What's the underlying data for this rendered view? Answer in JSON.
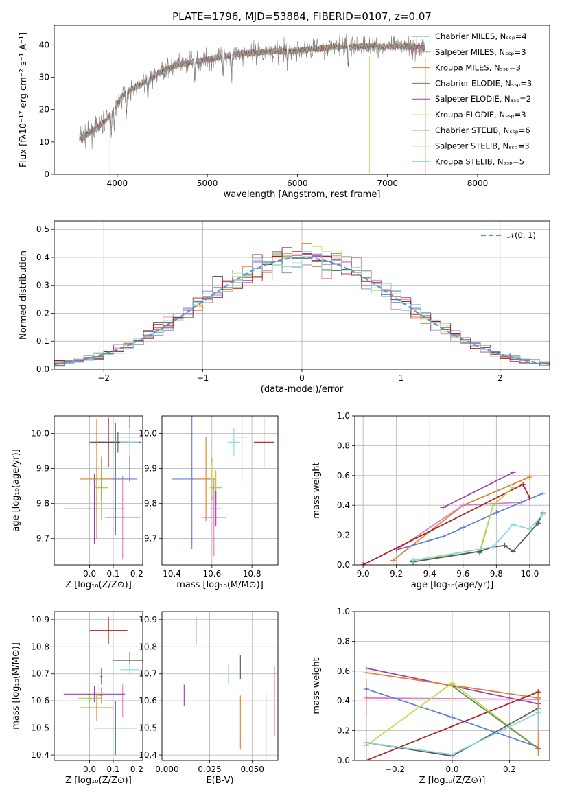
{
  "title": "PLATE=1796, MJD=53884, FIBERID=0107, z=0.07",
  "colors": {
    "chabrier_miles": "#6b8ecf",
    "salpeter_miles": "#f08080",
    "kroupa_miles": "#d9822b",
    "chabrier_elodie": "#5e8a5e",
    "salpeter_elodie": "#9b3fb5",
    "kroupa_elodie": "#c8e06b",
    "chabrier_stelib": "#555555",
    "salpeter_stelib": "#b01c1c",
    "kroupa_stelib": "#80d8e0",
    "normal": "#5b8fd8",
    "grid": "#b0b0b0",
    "pink": "#e377c2",
    "blue": "#5b7fcf",
    "green": "#9acd32",
    "yellowgreen": "#bcdc4c",
    "orange": "#e0802b",
    "purple": "#9b3fb5",
    "cyan": "#80d8e0",
    "darkgrey": "#555555",
    "darkred": "#b01c1c",
    "olive": "#9aa03a"
  },
  "chart_data": [
    {
      "id": "spectrum",
      "type": "line",
      "xlabel": "wavelength [Angstrom, rest frame]",
      "ylabel": "Flux [fλ10⁻¹⁷ erg cm⁻² s⁻¹ A⁻¹]",
      "xlim": [
        3300,
        8800
      ],
      "ylim": [
        0,
        46
      ],
      "xticks": [
        4000,
        5000,
        6000,
        7000,
        8000
      ],
      "yticks": [
        0,
        10,
        20,
        30,
        40
      ],
      "grid": false,
      "legend_position": "top-right",
      "legend": [
        "Chabrier MILES, Nₛₛₚ=4",
        "Salpeter MILES, Nₛₛₚ=3",
        "Kroupa MILES, Nₛₛₚ=3",
        "Chabrier ELODIE, Nₛₛₚ=3",
        "Salpeter ELODIE, Nₛₛₚ=2",
        "Kroupa ELODIE, Nₛₛₚ=3",
        "Chabrier STELIB, Nₛₛₚ=6",
        "Salpeter STELIB, Nₛₛₚ=3",
        "Kroupa STELIB, Nₛₛₚ=5"
      ],
      "continuum": {
        "x": [
          3580,
          3650,
          3750,
          3850,
          3950,
          4050,
          4200,
          4350,
          4500,
          4700,
          4900,
          5100,
          5300,
          5500,
          5700,
          5900,
          6100,
          6300,
          6500,
          6700,
          6900,
          7100,
          7300,
          7400
        ],
        "y": [
          11,
          12,
          14,
          16,
          19,
          24,
          27,
          29,
          32,
          34,
          35,
          36,
          37,
          37.5,
          38,
          38,
          38.5,
          39,
          39.5,
          39.5,
          39.5,
          39.5,
          39.5,
          39
        ]
      },
      "data_wavelength_range": [
        3580,
        7420
      ]
    },
    {
      "id": "residuals",
      "type": "histogram",
      "xlabel": "(data-model)/error",
      "ylabel": "Normed distribution",
      "xlim": [
        -2.5,
        2.5
      ],
      "ylim": [
        0,
        0.53
      ],
      "xticks": [
        -2,
        -1,
        0,
        1,
        2
      ],
      "yticks": [
        0.0,
        0.1,
        0.2,
        0.3,
        0.4,
        0.5
      ],
      "grid": true,
      "legend_position": "top-right",
      "legend": [
        "𝒩(0, 1)"
      ],
      "bin_width": 0.1,
      "reference_curve": "normal(0,1)",
      "series_count": 9
    },
    {
      "id": "Z-age",
      "type": "errorbar",
      "xlabel": "Z [log₁₀(Z/Z⊙)]",
      "ylabel": "age  [log₁₀(age/yr)]",
      "xlim": [
        -0.15,
        0.225
      ],
      "ylim": [
        9.625,
        10.05
      ],
      "xticks": [
        0.0,
        0.1,
        0.2
      ],
      "yticks": [
        9.7,
        9.8,
        9.9,
        10.0
      ],
      "grid": true,
      "points": [
        {
          "color": "darkred",
          "x": 0.08,
          "y": 9.975,
          "dx": 0.08,
          "dy": 0.07
        },
        {
          "color": "darkgrey",
          "x": 0.17,
          "y": 9.99,
          "dx": 0.07,
          "dy": 0.13
        },
        {
          "color": "darkgrey",
          "x": 0.12,
          "y": 9.975,
          "dx": 0.1,
          "dy": 0.03
        },
        {
          "color": "cyan",
          "x": 0.17,
          "y": 9.975,
          "dx": 0.04,
          "dy": 0.04
        },
        {
          "color": "pink",
          "x": 0.14,
          "y": 9.76,
          "dx": 0.075,
          "dy": 0.12
        },
        {
          "color": "purple",
          "x": 0.02,
          "y": 9.785,
          "dx": 0.13,
          "dy": 0.1
        },
        {
          "color": "blue",
          "x": 0.11,
          "y": 9.87,
          "dx": 0.09,
          "dy": 0.16
        },
        {
          "color": "orange",
          "x": 0.03,
          "y": 9.87,
          "dx": 0.07,
          "dy": 0.17
        },
        {
          "color": "green",
          "x": 0.05,
          "y": 9.845,
          "dx": 0.03,
          "dy": 0.09
        },
        {
          "color": "olive",
          "x": 0.05,
          "y": 9.87,
          "dx": 0.005,
          "dy": 0.06
        },
        {
          "color": "yellowgreen",
          "x": 0.04,
          "y": 9.87,
          "dx": 0.005,
          "dy": 0.04
        }
      ]
    },
    {
      "id": "mass-age",
      "type": "errorbar",
      "xlabel": "mass [log₁₀(M/M⊙)]",
      "ylabel": "",
      "xlim": [
        10.35,
        10.93
      ],
      "ylim": [
        9.625,
        10.05
      ],
      "xticks": [
        10.4,
        10.6,
        10.8
      ],
      "yticks": [
        9.7,
        9.8,
        9.9,
        10.0
      ],
      "grid": true,
      "points": [
        {
          "color": "darkred",
          "x": 10.86,
          "y": 9.975,
          "dx": 0.05,
          "dy": 0.07
        },
        {
          "color": "darkgrey",
          "x": 10.75,
          "y": 9.99,
          "dx": 0.03,
          "dy": 0.13
        },
        {
          "color": "cyan",
          "x": 10.71,
          "y": 9.975,
          "dx": 0.03,
          "dy": 0.04
        },
        {
          "color": "blue",
          "x": 10.5,
          "y": 9.87,
          "dx": 0.1,
          "dy": 0.2
        },
        {
          "color": "orange",
          "x": 10.57,
          "y": 9.87,
          "dx": 0.05,
          "dy": 0.12
        },
        {
          "color": "green",
          "x": 10.62,
          "y": 9.845,
          "dx": 0.03,
          "dy": 0.05
        },
        {
          "color": "purple",
          "x": 10.62,
          "y": 9.785,
          "dx": 0.03,
          "dy": 0.05
        },
        {
          "color": "pink",
          "x": 10.61,
          "y": 9.76,
          "dx": 0.06,
          "dy": 0.11
        },
        {
          "color": "olive",
          "x": 10.6,
          "y": 9.87,
          "dx": 0.005,
          "dy": 0.06
        },
        {
          "color": "yellowgreen",
          "x": 10.6,
          "y": 9.87,
          "dx": 0.005,
          "dy": 0.05
        }
      ]
    },
    {
      "id": "age-weight",
      "type": "line",
      "xlabel": "age  [log₁₀(age/yr)]",
      "ylabel": "mass weight",
      "xlim": [
        8.95,
        10.12
      ],
      "ylim": [
        0,
        1.0
      ],
      "xticks": [
        9.0,
        9.2,
        9.4,
        9.6,
        9.8,
        10.0
      ],
      "yticks": [
        0.0,
        0.2,
        0.4,
        0.6,
        0.8,
        1.0
      ],
      "grid": true,
      "series": [
        {
          "color": "purple",
          "x": [
            9.48,
            9.9
          ],
          "y": [
            0.385,
            0.62
          ]
        },
        {
          "color": "orange",
          "x": [
            9.18,
            9.6,
            10.0
          ],
          "y": [
            0.03,
            0.4,
            0.59
          ]
        },
        {
          "color": "pink",
          "x": [
            9.2,
            9.6,
            9.95
          ],
          "y": [
            0.1,
            0.4,
            0.42
          ]
        },
        {
          "color": "blue",
          "x": [
            9.2,
            9.48,
            9.6,
            9.8,
            10.08
          ],
          "y": [
            0.1,
            0.19,
            0.25,
            0.35,
            0.48
          ]
        },
        {
          "color": "darkred",
          "x": [
            9.0,
            9.96,
            10.0
          ],
          "y": [
            0.0,
            0.54,
            0.45
          ]
        },
        {
          "color": "chabrier_elodie",
          "x": [
            9.7,
            9.78,
            9.9
          ],
          "y": [
            0.08,
            0.4,
            0.52
          ]
        },
        {
          "color": "yellowgreen",
          "x": [
            9.3,
            9.7,
            9.78,
            9.9
          ],
          "y": [
            0.03,
            0.09,
            0.4,
            0.52
          ]
        },
        {
          "color": "darkgrey",
          "x": [
            9.3,
            9.7,
            9.78,
            9.85,
            9.9,
            10.05,
            10.08
          ],
          "y": [
            0.02,
            0.09,
            0.12,
            0.13,
            0.09,
            0.28,
            0.35
          ]
        },
        {
          "color": "cyan",
          "x": [
            9.3,
            9.78,
            9.9,
            10.0,
            10.08
          ],
          "y": [
            0.03,
            0.12,
            0.27,
            0.24,
            0.34
          ]
        }
      ]
    },
    {
      "id": "Z-mass",
      "type": "errorbar",
      "xlabel": "Z [log₁₀(Z/Z⊙)]",
      "ylabel": "mass [log₁₀(M/M⊙)]",
      "xlim": [
        -0.15,
        0.225
      ],
      "ylim": [
        10.38,
        10.93
      ],
      "xticks": [
        0.0,
        0.1,
        0.2
      ],
      "yticks": [
        10.4,
        10.5,
        10.6,
        10.7,
        10.8,
        10.9
      ],
      "grid": true,
      "points": [
        {
          "color": "darkred",
          "x": 0.08,
          "y": 10.86,
          "dx": 0.08,
          "dy": 0.05
        },
        {
          "color": "darkgrey",
          "x": 0.17,
          "y": 10.75,
          "dx": 0.07,
          "dy": 0.03
        },
        {
          "color": "cyan",
          "x": 0.17,
          "y": 10.715,
          "dx": 0.04,
          "dy": 0.02
        },
        {
          "color": "pink",
          "x": 0.14,
          "y": 10.6,
          "dx": 0.075,
          "dy": 0.06
        },
        {
          "color": "purple",
          "x": 0.02,
          "y": 10.625,
          "dx": 0.13,
          "dy": 0.03
        },
        {
          "color": "blue",
          "x": 0.11,
          "y": 10.5,
          "dx": 0.09,
          "dy": 0.1
        },
        {
          "color": "orange",
          "x": 0.03,
          "y": 10.575,
          "dx": 0.07,
          "dy": 0.05
        },
        {
          "color": "green",
          "x": 0.0,
          "y": 10.61,
          "dx": 0.05,
          "dy": 0.01
        },
        {
          "color": "olive",
          "x": 0.05,
          "y": 10.62,
          "dx": 0.005,
          "dy": 0.03
        },
        {
          "color": "yellowgreen",
          "x": 0.04,
          "y": 10.62,
          "dx": 0.005,
          "dy": 0.04
        },
        {
          "color": "purple",
          "x": 0.05,
          "y": 10.69,
          "dx": 0.005,
          "dy": 0.03
        }
      ]
    },
    {
      "id": "ebv-mass",
      "type": "errorbar",
      "xlabel": "E(B-V)",
      "ylabel": "",
      "xlim": [
        -0.003,
        0.065
      ],
      "ylim": [
        10.38,
        10.93
      ],
      "xticks": [
        0.0,
        0.025,
        0.05
      ],
      "yticks": [
        10.4,
        10.5,
        10.6,
        10.7,
        10.8,
        10.9
      ],
      "grid": true,
      "points": [
        {
          "color": "darkred",
          "x": 0.017,
          "y": 10.86,
          "dx": 0,
          "dy": 0.05
        },
        {
          "color": "darkgrey",
          "x": 0.043,
          "y": 10.725,
          "dx": 0,
          "dy": 0.045
        },
        {
          "color": "cyan",
          "x": 0.036,
          "y": 10.7,
          "dx": 0,
          "dy": 0.035
        },
        {
          "color": "pink",
          "x": 0.063,
          "y": 10.6,
          "dx": 0,
          "dy": 0.13
        },
        {
          "color": "purple",
          "x": 0.01,
          "y": 10.62,
          "dx": 0,
          "dy": 0.04
        },
        {
          "color": "blue",
          "x": 0.058,
          "y": 10.5,
          "dx": 0,
          "dy": 0.13
        },
        {
          "color": "orange",
          "x": 0.043,
          "y": 10.52,
          "dx": 0,
          "dy": 0.1
        },
        {
          "color": "yellowgreen",
          "x": 0.0,
          "y": 10.62,
          "dx": 0,
          "dy": 0.06
        }
      ]
    },
    {
      "id": "Z-weight",
      "type": "line",
      "xlabel": "Z [log₁₀(Z/Z⊙)]",
      "ylabel": "mass weight",
      "xlim": [
        -0.34,
        0.34
      ],
      "ylim": [
        0,
        1.0
      ],
      "xticks": [
        -0.2,
        0.0,
        0.2
      ],
      "yticks": [
        0.0,
        0.2,
        0.4,
        0.6,
        0.8,
        1.0
      ],
      "grid": true,
      "series": [
        {
          "color": "purple",
          "x": [
            -0.3,
            0.3
          ],
          "y": [
            0.62,
            0.38
          ]
        },
        {
          "color": "orange",
          "x": [
            -0.3,
            0.3
          ],
          "y": [
            0.59,
            0.42
          ]
        },
        {
          "color": "pink",
          "x": [
            -0.3,
            0.3
          ],
          "y": [
            0.42,
            0.41
          ]
        },
        {
          "color": "blue",
          "x": [
            -0.3,
            0.0,
            0.3
          ],
          "y": [
            0.48,
            0.29,
            0.09
          ]
        },
        {
          "color": "darkred",
          "x": [
            -0.3,
            0.3
          ],
          "y": [
            0.0,
            0.46
          ]
        },
        {
          "color": "yellowgreen",
          "x": [
            -0.3,
            0.0,
            0.3
          ],
          "y": [
            0.1,
            0.52,
            0.08
          ]
        },
        {
          "color": "chabrier_elodie",
          "x": [
            0.0,
            0.3
          ],
          "y": [
            0.5,
            0.08
          ]
        },
        {
          "color": "darkgrey",
          "x": [
            -0.3,
            0.0,
            0.3
          ],
          "y": [
            0.12,
            0.03,
            0.35
          ]
        },
        {
          "color": "cyan",
          "x": [
            -0.3,
            0.0,
            0.3
          ],
          "y": [
            0.12,
            0.04,
            0.32
          ]
        }
      ],
      "vertical_errors": [
        {
          "color": "darkred",
          "x": -0.3,
          "y0": 0.0,
          "y1": 0.55
        },
        {
          "color": "cyan",
          "x": -0.3,
          "y0": 0.0,
          "y1": 0.3
        },
        {
          "color": "orange",
          "x": 0.3,
          "y0": 0.03,
          "y1": 0.45
        },
        {
          "color": "cyan",
          "x": 0.3,
          "y0": 0.2,
          "y1": 0.35
        },
        {
          "color": "yellowgreen",
          "x": 0.0,
          "y0": 0.4,
          "y1": 0.52
        }
      ]
    }
  ]
}
